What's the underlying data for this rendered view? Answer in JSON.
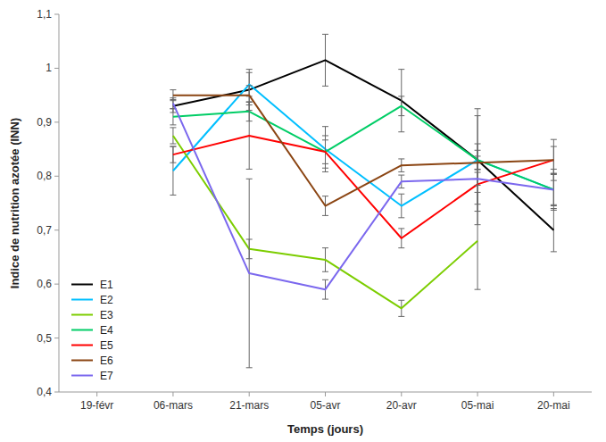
{
  "chart_data": {
    "type": "line",
    "xlabel": "Temps (jours)",
    "ylabel": "Indice de nutrition azotée (INN)",
    "categories": [
      "19-févr",
      "06-mars",
      "21-mars",
      "05-avr",
      "20-avr",
      "05-mai",
      "20-mai"
    ],
    "series": [
      {
        "name": "E1",
        "color": "#000000",
        "values": [
          null,
          0.93,
          0.96,
          1.015,
          0.94,
          0.83,
          0.7
        ],
        "errors": [
          null,
          0.012,
          0.038,
          0.048,
          0.058,
          0.095,
          0.04
        ]
      },
      {
        "name": "E2",
        "color": "#00BFFF",
        "values": [
          null,
          0.81,
          0.97,
          0.85,
          0.745,
          0.83,
          0.775
        ],
        "errors": [
          null,
          0.045,
          0.022,
          0.042,
          0.022,
          0.082,
          0.03
        ]
      },
      {
        "name": "E3",
        "color": "#7CCD00",
        "values": [
          null,
          0.875,
          0.665,
          0.645,
          0.555,
          0.68,
          null
        ],
        "errors": [
          null,
          0.015,
          0.018,
          0.022,
          0.015,
          0.09,
          null
        ]
      },
      {
        "name": "E4",
        "color": "#00CD66",
        "values": [
          null,
          0.91,
          0.92,
          0.845,
          0.93,
          0.83,
          0.775
        ],
        "errors": [
          null,
          0.015,
          0.018,
          0.022,
          0.018,
          0.018,
          0.038
        ]
      },
      {
        "name": "E5",
        "color": "#FF0000",
        "values": [
          null,
          0.84,
          0.875,
          0.845,
          0.685,
          0.785,
          0.83
        ],
        "errors": [
          null,
          0.015,
          0.062,
          0.03,
          0.018,
          0.075,
          0.025
        ]
      },
      {
        "name": "E6",
        "color": "#8B4513",
        "values": [
          null,
          0.95,
          0.95,
          0.745,
          0.82,
          0.825,
          0.83
        ],
        "errors": [
          null,
          0.01,
          0.018,
          0.018,
          0.012,
          0.012,
          0.038
        ]
      },
      {
        "name": "E7",
        "color": "#7B68EE",
        "values": [
          null,
          0.935,
          0.62,
          0.59,
          0.79,
          0.795,
          0.775
        ],
        "errors": [
          null,
          0.01,
          0.175,
          0.018,
          0.012,
          0.012,
          0.028
        ]
      }
    ],
    "ylim": [
      0.4,
      1.1
    ],
    "yticks": [
      {
        "value": 0.4,
        "label": "0,4"
      },
      {
        "value": 0.5,
        "label": "0,5"
      },
      {
        "value": 0.6,
        "label": "0,6"
      },
      {
        "value": 0.7,
        "label": "0,7"
      },
      {
        "value": 0.8,
        "label": "0,8"
      },
      {
        "value": 0.9,
        "label": "0,9"
      },
      1,
      {
        "value": 1.1,
        "label": "1,1"
      }
    ],
    "grid": false,
    "legend": "lower left"
  }
}
